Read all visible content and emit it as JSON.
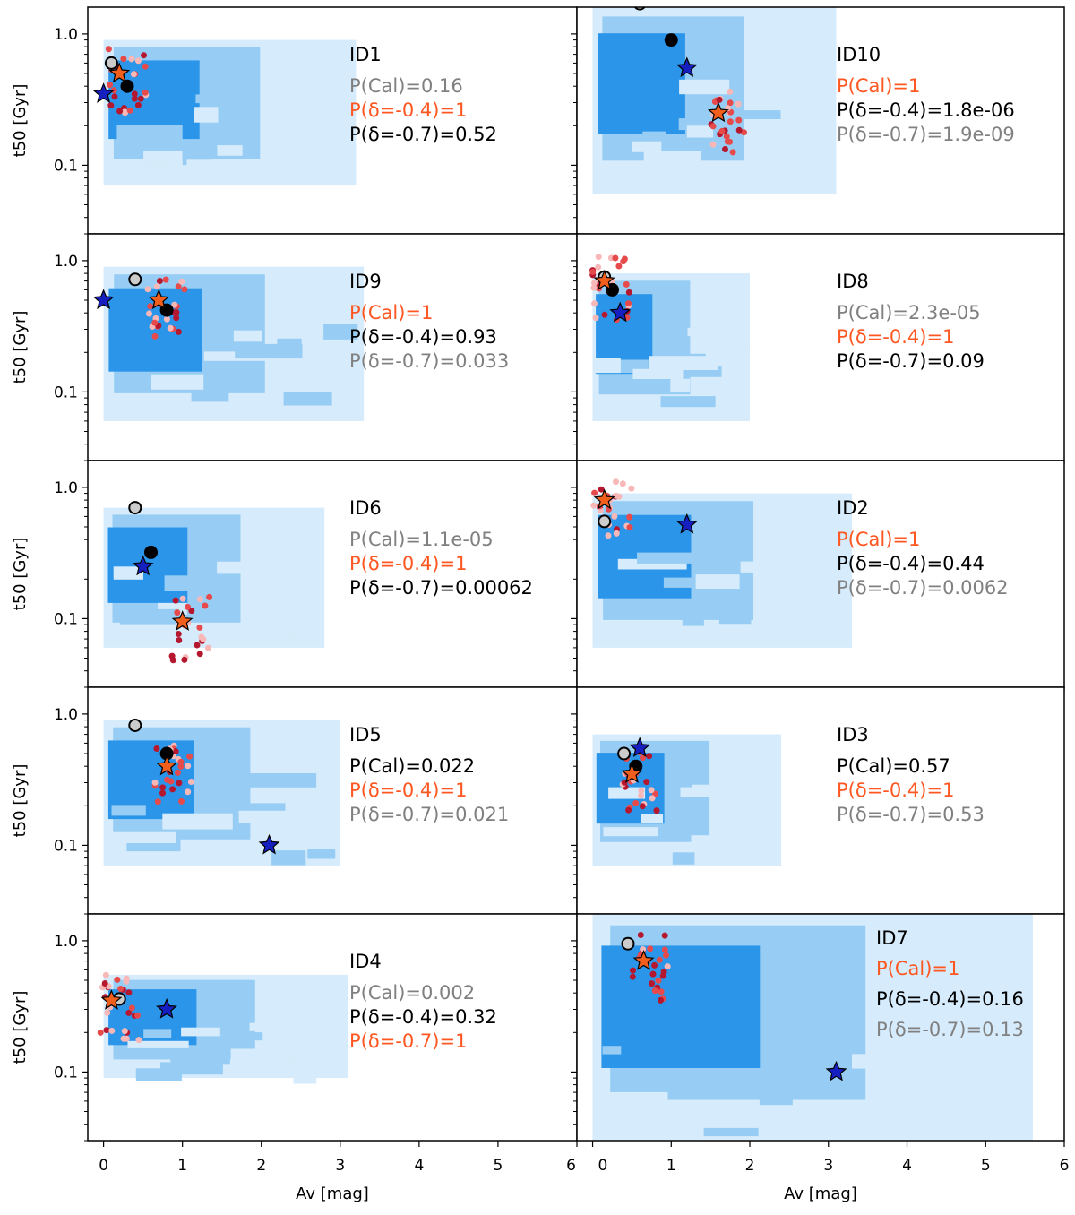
{
  "chart_data": {
    "type": "scatter",
    "layout": "5 rows x 2 columns, shared x and y axes",
    "xlabel": "Av [mag]",
    "ylabel": "t50 [Gyr]",
    "yscale": "log",
    "xlim": [
      -0.2,
      6.0
    ],
    "ylim": [
      0.03,
      1.6
    ],
    "xticks": [
      "0",
      "1",
      "2",
      "3",
      "4",
      "5",
      "6"
    ],
    "yticks": [
      "0.1",
      "1.0"
    ],
    "colors": {
      "level_outer": "#d6ebfb",
      "level_mid": "#97cdf4",
      "level_inner": "#2b95ea",
      "samples": [
        "#f8b8b8",
        "#e64a4a",
        "#b5172f"
      ],
      "highlight": "#ff5722",
      "muted": "#808080",
      "normal": "#000000",
      "blue_star": "#1620c0",
      "orange_star": "#f25f1c",
      "open_circle": "#cccccc",
      "filled_circle": "#000000"
    },
    "panels": [
      {
        "id": "ID1",
        "row": 0,
        "col": 0,
        "labels": [
          {
            "text": "P(Cal)=0.16",
            "style": "muted"
          },
          {
            "text": "P(δ=-0.4)=1",
            "style": "highlight"
          },
          {
            "text": "P(δ=-0.7)=0.52",
            "style": "normal"
          }
        ],
        "markers": {
          "open_circle": [
            0.1,
            0.6
          ],
          "filled_circle": [
            0.3,
            0.4
          ],
          "blue_star": [
            0.0,
            0.35
          ],
          "orange_star": [
            0.2,
            0.5
          ]
        },
        "region": [
          0.0,
          3.2,
          0.07,
          0.9
        ]
      },
      {
        "id": "ID10",
        "row": 0,
        "col": 1,
        "labels": [
          {
            "text": "P(Cal)=1",
            "style": "highlight"
          },
          {
            "text": "P(δ=-0.4)=1.8e-06",
            "style": "normal"
          },
          {
            "text": "P(δ=-0.7)=1.9e-09",
            "style": "muted"
          }
        ],
        "markers": {
          "open_circle": [
            0.6,
            1.7
          ],
          "filled_circle": [
            1.0,
            0.9
          ],
          "blue_star": [
            1.2,
            0.55
          ],
          "orange_star": [
            1.6,
            0.25
          ]
        },
        "region": [
          0.0,
          3.1,
          0.06,
          1.6
        ]
      },
      {
        "id": "ID9",
        "row": 1,
        "col": 0,
        "labels": [
          {
            "text": "P(Cal)=1",
            "style": "highlight"
          },
          {
            "text": "P(δ=-0.4)=0.93",
            "style": "normal"
          },
          {
            "text": "P(δ=-0.7)=0.033",
            "style": "muted"
          }
        ],
        "markers": {
          "open_circle": [
            0.4,
            0.72
          ],
          "filled_circle": [
            0.8,
            0.42
          ],
          "blue_star": [
            0.0,
            0.5
          ],
          "orange_star": [
            0.7,
            0.5
          ]
        },
        "region": [
          0.0,
          3.3,
          0.06,
          0.9
        ]
      },
      {
        "id": "ID8",
        "row": 1,
        "col": 1,
        "labels": [
          {
            "text": "P(Cal)=2.3e-05",
            "style": "muted"
          },
          {
            "text": "P(δ=-0.4)=1",
            "style": "highlight"
          },
          {
            "text": "P(δ=-0.7)=0.09",
            "style": "normal"
          }
        ],
        "markers": {
          "open_circle": [
            0.15,
            0.75
          ],
          "filled_circle": [
            0.25,
            0.6
          ],
          "blue_star": [
            0.35,
            0.4
          ],
          "orange_star": [
            0.15,
            0.7
          ]
        },
        "region": [
          0.0,
          2.0,
          0.06,
          0.8
        ]
      },
      {
        "id": "ID6",
        "row": 2,
        "col": 0,
        "labels": [
          {
            "text": "P(Cal)=1.1e-05",
            "style": "muted"
          },
          {
            "text": "P(δ=-0.4)=1",
            "style": "highlight"
          },
          {
            "text": "P(δ=-0.7)=0.00062",
            "style": "normal"
          }
        ],
        "markers": {
          "open_circle": [
            0.4,
            0.7
          ],
          "filled_circle": [
            0.6,
            0.32
          ],
          "blue_star": [
            0.5,
            0.25
          ],
          "orange_star": [
            1.0,
            0.095
          ]
        },
        "region": [
          0.0,
          2.8,
          0.06,
          0.7
        ]
      },
      {
        "id": "ID2",
        "row": 2,
        "col": 1,
        "labels": [
          {
            "text": "P(Cal)=1",
            "style": "highlight"
          },
          {
            "text": "P(δ=-0.4)=0.44",
            "style": "normal"
          },
          {
            "text": "P(δ=-0.7)=0.0062",
            "style": "muted"
          }
        ],
        "markers": {
          "open_circle": [
            0.15,
            0.55
          ],
          "filled_circle": null,
          "blue_star": [
            1.2,
            0.52
          ],
          "orange_star": [
            0.15,
            0.8
          ]
        },
        "region": [
          0.0,
          3.3,
          0.06,
          0.9
        ]
      },
      {
        "id": "ID5",
        "row": 3,
        "col": 0,
        "labels": [
          {
            "text": "P(Cal)=0.022",
            "style": "normal"
          },
          {
            "text": "P(δ=-0.4)=1",
            "style": "highlight"
          },
          {
            "text": "P(δ=-0.7)=0.021",
            "style": "muted"
          }
        ],
        "markers": {
          "open_circle": [
            0.4,
            0.82
          ],
          "filled_circle": [
            0.8,
            0.5
          ],
          "blue_star": [
            2.1,
            0.1
          ],
          "orange_star": [
            0.8,
            0.4
          ]
        },
        "region": [
          0.0,
          3.0,
          0.07,
          0.9
        ]
      },
      {
        "id": "ID3",
        "row": 3,
        "col": 1,
        "labels": [
          {
            "text": "P(Cal)=0.57",
            "style": "normal"
          },
          {
            "text": "P(δ=-0.4)=1",
            "style": "highlight"
          },
          {
            "text": "P(δ=-0.7)=0.53",
            "style": "muted"
          }
        ],
        "markers": {
          "open_circle": [
            0.4,
            0.5
          ],
          "filled_circle": [
            0.55,
            0.4
          ],
          "blue_star": [
            0.6,
            0.55
          ],
          "orange_star": [
            0.5,
            0.35
          ]
        },
        "region": [
          0.0,
          2.4,
          0.07,
          0.7
        ]
      },
      {
        "id": "ID4",
        "row": 4,
        "col": 0,
        "labels": [
          {
            "text": "P(Cal)=0.002",
            "style": "muted"
          },
          {
            "text": "P(δ=-0.4)=0.32",
            "style": "normal"
          },
          {
            "text": "P(δ=-0.7)=1",
            "style": "highlight"
          }
        ],
        "markers": {
          "open_circle": [
            0.2,
            0.36
          ],
          "filled_circle": null,
          "blue_star": [
            0.8,
            0.3
          ],
          "orange_star": [
            0.1,
            0.35
          ]
        },
        "region": [
          0.0,
          3.1,
          0.09,
          0.55
        ]
      },
      {
        "id": "ID7",
        "row": 4,
        "col": 1,
        "labels": [
          {
            "text": "ID7",
            "style": "normal"
          },
          {
            "text": "P(Cal)=1",
            "style": "highlight"
          },
          {
            "text": "P(δ=-0.4)=0.16",
            "style": "normal"
          },
          {
            "text": "P(δ=-0.7)=0.13",
            "style": "muted"
          }
        ],
        "markers": {
          "open_circle": [
            0.45,
            0.95
          ],
          "filled_circle": null,
          "blue_star": [
            3.1,
            0.1
          ],
          "orange_star": [
            0.65,
            0.7
          ]
        },
        "region": [
          0.0,
          5.6,
          0.03,
          1.6
        ]
      }
    ]
  }
}
